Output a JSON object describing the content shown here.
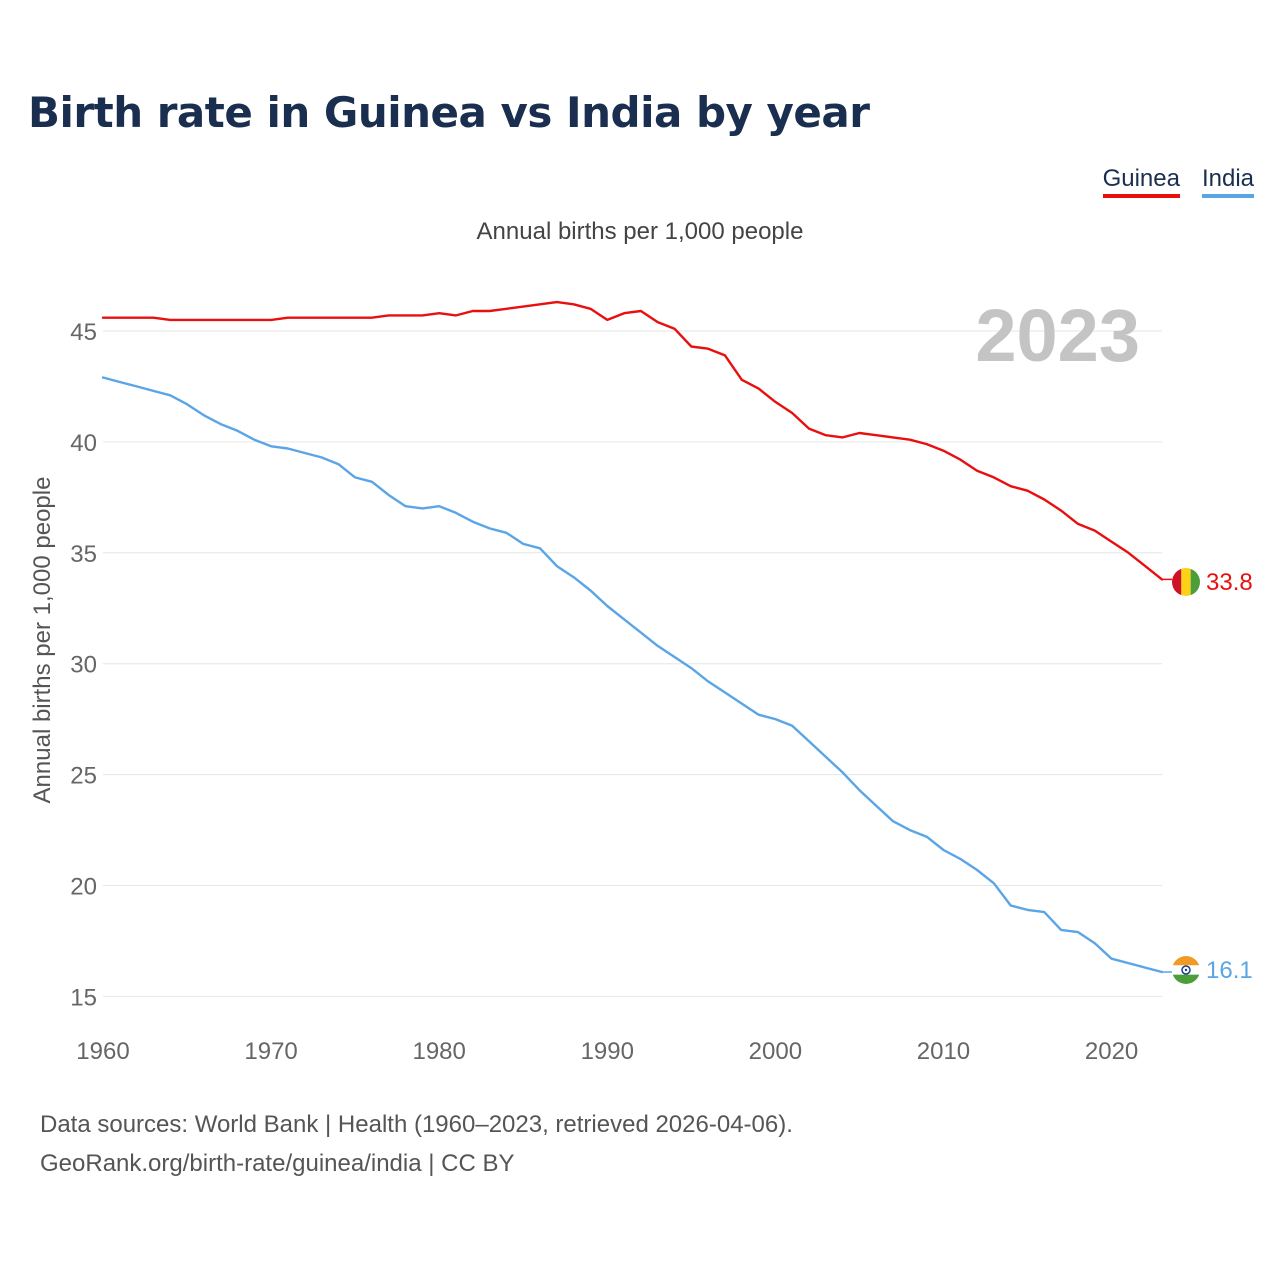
{
  "chart_data": {
    "type": "line",
    "title": "Birth rate in Guinea vs India by year",
    "subtitle": "Annual births per 1,000 people",
    "ylabel": "Annual births per 1,000 people",
    "xlabel": "",
    "xlim": [
      1960,
      2023
    ],
    "ylim": [
      14,
      47
    ],
    "x_ticks": [
      1960,
      1970,
      1980,
      1990,
      2000,
      2010,
      2020
    ],
    "y_ticks": [
      15,
      20,
      25,
      30,
      35,
      40,
      45
    ],
    "year_label": "2023",
    "grid": true,
    "legend_position": "top-right",
    "x": [
      1960,
      1961,
      1962,
      1963,
      1964,
      1965,
      1966,
      1967,
      1968,
      1969,
      1970,
      1971,
      1972,
      1973,
      1974,
      1975,
      1976,
      1977,
      1978,
      1979,
      1980,
      1981,
      1982,
      1983,
      1984,
      1985,
      1986,
      1987,
      1988,
      1989,
      1990,
      1991,
      1992,
      1993,
      1994,
      1995,
      1996,
      1997,
      1998,
      1999,
      2000,
      2001,
      2002,
      2003,
      2004,
      2005,
      2006,
      2007,
      2008,
      2009,
      2010,
      2011,
      2012,
      2013,
      2014,
      2015,
      2016,
      2017,
      2018,
      2019,
      2020,
      2021,
      2022,
      2023
    ],
    "series": [
      {
        "name": "Guinea",
        "color": "#e8100f",
        "end_label": "33.8",
        "values": [
          45.6,
          45.6,
          45.6,
          45.6,
          45.5,
          45.5,
          45.5,
          45.5,
          45.5,
          45.5,
          45.5,
          45.6,
          45.6,
          45.6,
          45.6,
          45.6,
          45.6,
          45.7,
          45.7,
          45.7,
          45.8,
          45.7,
          45.9,
          45.9,
          46.0,
          46.1,
          46.2,
          46.3,
          46.2,
          46.0,
          45.5,
          45.8,
          45.9,
          45.4,
          45.1,
          44.3,
          44.2,
          43.9,
          42.8,
          42.4,
          41.8,
          41.3,
          40.6,
          40.3,
          40.2,
          40.4,
          40.3,
          40.2,
          40.1,
          39.9,
          39.6,
          39.2,
          38.7,
          38.4,
          38.0,
          37.8,
          37.4,
          36.9,
          36.3,
          36.0,
          35.5,
          35.0,
          34.4,
          33.8
        ]
      },
      {
        "name": "India",
        "color": "#5aa5e6",
        "end_label": "16.1",
        "values": [
          42.9,
          42.7,
          42.5,
          42.3,
          42.1,
          41.7,
          41.2,
          40.8,
          40.5,
          40.1,
          39.8,
          39.7,
          39.5,
          39.3,
          39.0,
          38.4,
          38.2,
          37.6,
          37.1,
          37.0,
          37.1,
          36.8,
          36.4,
          36.1,
          35.9,
          35.4,
          35.2,
          34.4,
          33.9,
          33.3,
          32.6,
          32.0,
          31.4,
          30.8,
          30.3,
          29.8,
          29.2,
          28.7,
          28.2,
          27.7,
          27.5,
          27.2,
          26.5,
          25.8,
          25.1,
          24.3,
          23.6,
          22.9,
          22.5,
          22.2,
          21.6,
          21.2,
          20.7,
          20.1,
          19.1,
          18.9,
          18.8,
          18.0,
          17.9,
          17.4,
          16.7,
          16.5,
          16.3,
          16.1
        ]
      }
    ]
  },
  "footer": {
    "line1": "Data sources: World Bank | Health (1960–2023, retrieved 2026-04-06).",
    "line2": "GeoRank.org/birth-rate/guinea/india | CC BY"
  },
  "colors": {
    "title": "#1a2e4f",
    "grid": "#e6e6e6",
    "tick_text": "#666666",
    "year_label": "#c4c4c4"
  }
}
